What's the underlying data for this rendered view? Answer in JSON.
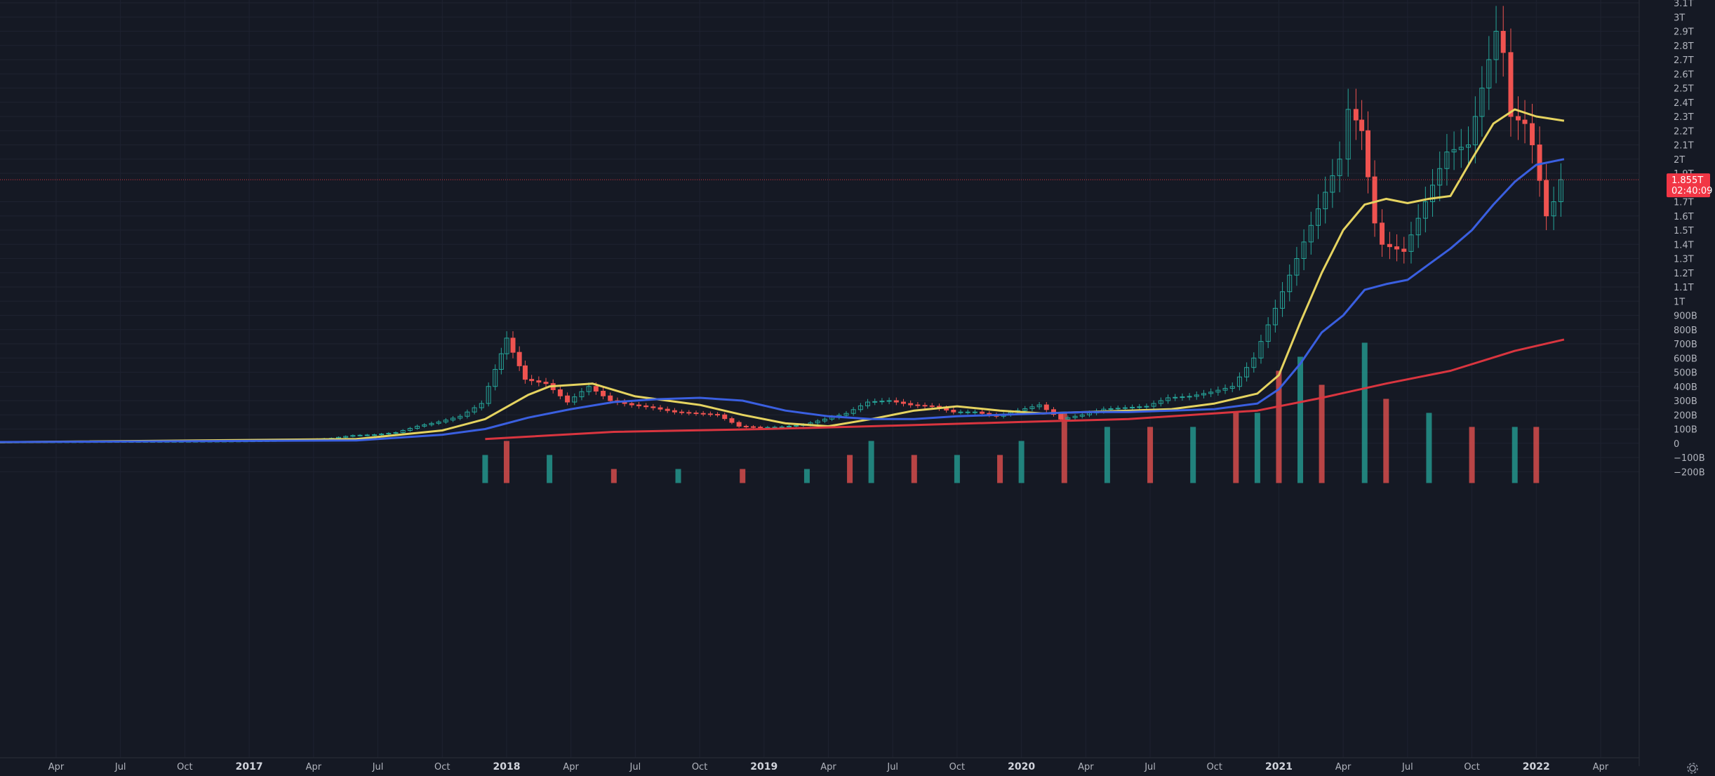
{
  "chart_data": {
    "type": "candlestick",
    "title": "",
    "y_axis": {
      "ticks": [
        "3.1T",
        "3T",
        "2.9T",
        "2.8T",
        "2.7T",
        "2.6T",
        "2.5T",
        "2.4T",
        "2.3T",
        "2.2T",
        "2.1T",
        "2T",
        "1.9T",
        "1.7T",
        "1.6T",
        "1.5T",
        "1.4T",
        "1.3T",
        "1.2T",
        "1.1T",
        "1T",
        "900B",
        "800B",
        "700B",
        "600B",
        "500B",
        "400B",
        "300B",
        "200B",
        "100B",
        "0",
        "−100B",
        "−200B"
      ],
      "tick_values": [
        3.1,
        3.0,
        2.9,
        2.8,
        2.7,
        2.6,
        2.5,
        2.4,
        2.3,
        2.2,
        2.1,
        2.0,
        1.9,
        1.7,
        1.6,
        1.5,
        1.4,
        1.3,
        1.2,
        1.1,
        1.0,
        0.9,
        0.8,
        0.7,
        0.6,
        0.5,
        0.4,
        0.3,
        0.2,
        0.1,
        0,
        -0.1,
        -0.2
      ],
      "unit": "USD",
      "range": [
        -0.28,
        3.1
      ]
    },
    "x_axis": {
      "ticks": [
        "Apr",
        "Jul",
        "Oct",
        "2017",
        "Apr",
        "Jul",
        "Oct",
        "2018",
        "Apr",
        "Jul",
        "Oct",
        "2019",
        "Apr",
        "Jul",
        "Oct",
        "2020",
        "Apr",
        "Jul",
        "Oct",
        "2021",
        "Apr",
        "Jul",
        "Oct",
        "2022",
        "Apr"
      ],
      "tick_dates": [
        "2016-04",
        "2016-07",
        "2016-10",
        "2017-01",
        "2017-04",
        "2017-07",
        "2017-10",
        "2018-01",
        "2018-04",
        "2018-07",
        "2018-10",
        "2019-01",
        "2019-04",
        "2019-07",
        "2019-10",
        "2020-01",
        "2020-04",
        "2020-07",
        "2020-10",
        "2021-01",
        "2021-04",
        "2021-07",
        "2021-10",
        "2022-01",
        "2022-04"
      ],
      "bold_ticks": [
        "2017",
        "2018",
        "2019",
        "2020",
        "2021",
        "2022"
      ],
      "range": [
        "2016-01",
        "2022-06"
      ]
    },
    "current_price": {
      "label": "1.855T",
      "countdown": "02:40:09",
      "value": 1.855
    },
    "price_series": [
      [
        "2016-01",
        0.007
      ],
      [
        "2016-04",
        0.009
      ],
      [
        "2016-07",
        0.011
      ],
      [
        "2016-10",
        0.012
      ],
      [
        "2017-01",
        0.015
      ],
      [
        "2017-03",
        0.019
      ],
      [
        "2017-05",
        0.035
      ],
      [
        "2017-06",
        0.055
      ],
      [
        "2017-07",
        0.06
      ],
      [
        "2017-08",
        0.075
      ],
      [
        "2017-09",
        0.12
      ],
      [
        "2017-10",
        0.15
      ],
      [
        "2017-11",
        0.19
      ],
      [
        "2017-12",
        0.28
      ],
      [
        "2017-12-20",
        0.52
      ],
      [
        "2018-01-05",
        0.74
      ],
      [
        "2018-01-15",
        0.64
      ],
      [
        "2018-02-01",
        0.45
      ],
      [
        "2018-03",
        0.42
      ],
      [
        "2018-04",
        0.29
      ],
      [
        "2018-05",
        0.4
      ],
      [
        "2018-06",
        0.3
      ],
      [
        "2018-07",
        0.27
      ],
      [
        "2018-08",
        0.25
      ],
      [
        "2018-09",
        0.22
      ],
      [
        "2018-10",
        0.21
      ],
      [
        "2018-11",
        0.2
      ],
      [
        "2018-12",
        0.12
      ],
      [
        "2019-01",
        0.11
      ],
      [
        "2019-02",
        0.115
      ],
      [
        "2019-03",
        0.13
      ],
      [
        "2019-04",
        0.17
      ],
      [
        "2019-05",
        0.21
      ],
      [
        "2019-06",
        0.29
      ],
      [
        "2019-07",
        0.3
      ],
      [
        "2019-08",
        0.27
      ],
      [
        "2019-09",
        0.26
      ],
      [
        "2019-10",
        0.22
      ],
      [
        "2019-11",
        0.22
      ],
      [
        "2019-12",
        0.19
      ],
      [
        "2020-01",
        0.23
      ],
      [
        "2020-02",
        0.27
      ],
      [
        "2020-03",
        0.17
      ],
      [
        "2020-04",
        0.2
      ],
      [
        "2020-05",
        0.24
      ],
      [
        "2020-06",
        0.25
      ],
      [
        "2020-07",
        0.26
      ],
      [
        "2020-08",
        0.32
      ],
      [
        "2020-09",
        0.33
      ],
      [
        "2020-10",
        0.36
      ],
      [
        "2020-11",
        0.4
      ],
      [
        "2020-12",
        0.6
      ],
      [
        "2021-01",
        0.95
      ],
      [
        "2021-02",
        1.3
      ],
      [
        "2021-03",
        1.65
      ],
      [
        "2021-04",
        2.0
      ],
      [
        "2021-04-15",
        2.35
      ],
      [
        "2021-05",
        2.2
      ],
      [
        "2021-05-20",
        1.55
      ],
      [
        "2021-06",
        1.4
      ],
      [
        "2021-07",
        1.35
      ],
      [
        "2021-08",
        1.7
      ],
      [
        "2021-09",
        2.05
      ],
      [
        "2021-10",
        2.1
      ],
      [
        "2021-10-20",
        2.5
      ],
      [
        "2021-11-10",
        2.9
      ],
      [
        "2021-11-20",
        2.75
      ],
      [
        "2021-12",
        2.3
      ],
      [
        "2021-12-20",
        2.25
      ],
      [
        "2022-01",
        2.1
      ],
      [
        "2022-01-20",
        1.6
      ],
      [
        "2022-02-01",
        1.7
      ],
      [
        "2022-02-10",
        1.855
      ]
    ],
    "series": [
      {
        "name": "",
        "color": "#e5d360",
        "type": "line",
        "points": [
          [
            "2016-01",
            0.007
          ],
          [
            "2017-06",
            0.03
          ],
          [
            "2017-10",
            0.09
          ],
          [
            "2017-12",
            0.17
          ],
          [
            "2018-02",
            0.34
          ],
          [
            "2018-03",
            0.4
          ],
          [
            "2018-05",
            0.42
          ],
          [
            "2018-07",
            0.33
          ],
          [
            "2018-10",
            0.27
          ],
          [
            "2018-12",
            0.2
          ],
          [
            "2019-02",
            0.14
          ],
          [
            "2019-04",
            0.12
          ],
          [
            "2019-06",
            0.17
          ],
          [
            "2019-08",
            0.23
          ],
          [
            "2019-10",
            0.26
          ],
          [
            "2019-12",
            0.23
          ],
          [
            "2020-02",
            0.21
          ],
          [
            "2020-04",
            0.22
          ],
          [
            "2020-06",
            0.23
          ],
          [
            "2020-08",
            0.24
          ],
          [
            "2020-10",
            0.28
          ],
          [
            "2020-12",
            0.35
          ],
          [
            "2021-01",
            0.48
          ],
          [
            "2021-02",
            0.85
          ],
          [
            "2021-03",
            1.2
          ],
          [
            "2021-04",
            1.5
          ],
          [
            "2021-05",
            1.68
          ],
          [
            "2021-06",
            1.72
          ],
          [
            "2021-07",
            1.69
          ],
          [
            "2021-08",
            1.72
          ],
          [
            "2021-09",
            1.74
          ],
          [
            "2021-10",
            2.0
          ],
          [
            "2021-11",
            2.25
          ],
          [
            "2021-12",
            2.35
          ],
          [
            "2022-01",
            2.3
          ],
          [
            "2022-02-10",
            2.27
          ]
        ]
      },
      {
        "name": "",
        "color": "#3a5fe0",
        "type": "line",
        "points": [
          [
            "2016-01",
            0.008
          ],
          [
            "2017-06",
            0.02
          ],
          [
            "2017-10",
            0.06
          ],
          [
            "2017-12",
            0.1
          ],
          [
            "2018-02",
            0.18
          ],
          [
            "2018-04",
            0.24
          ],
          [
            "2018-06",
            0.29
          ],
          [
            "2018-08",
            0.31
          ],
          [
            "2018-10",
            0.32
          ],
          [
            "2018-12",
            0.3
          ],
          [
            "2019-02",
            0.23
          ],
          [
            "2019-04",
            0.19
          ],
          [
            "2019-06",
            0.17
          ],
          [
            "2019-08",
            0.17
          ],
          [
            "2019-10",
            0.19
          ],
          [
            "2019-12",
            0.2
          ],
          [
            "2020-02",
            0.21
          ],
          [
            "2020-04",
            0.22
          ],
          [
            "2020-06",
            0.22
          ],
          [
            "2020-08",
            0.23
          ],
          [
            "2020-10",
            0.24
          ],
          [
            "2020-12",
            0.28
          ],
          [
            "2021-01",
            0.38
          ],
          [
            "2021-02",
            0.56
          ],
          [
            "2021-03",
            0.78
          ],
          [
            "2021-04",
            0.9
          ],
          [
            "2021-05",
            1.08
          ],
          [
            "2021-06",
            1.12
          ],
          [
            "2021-07",
            1.15
          ],
          [
            "2021-08",
            1.26
          ],
          [
            "2021-09",
            1.37
          ],
          [
            "2021-10",
            1.5
          ],
          [
            "2021-11",
            1.68
          ],
          [
            "2021-12",
            1.84
          ],
          [
            "2022-01",
            1.96
          ],
          [
            "2022-02-10",
            2.0
          ]
        ]
      },
      {
        "name": "",
        "color": "#d9353f",
        "type": "line",
        "points": [
          [
            "2017-12",
            0.03
          ],
          [
            "2018-06",
            0.08
          ],
          [
            "2019-01",
            0.1
          ],
          [
            "2019-06",
            0.12
          ],
          [
            "2020-01",
            0.15
          ],
          [
            "2020-06",
            0.17
          ],
          [
            "2020-12",
            0.23
          ],
          [
            "2021-03",
            0.32
          ],
          [
            "2021-06",
            0.42
          ],
          [
            "2021-09",
            0.51
          ],
          [
            "2021-12",
            0.65
          ],
          [
            "2022-02-10",
            0.73
          ]
        ]
      }
    ],
    "volume": {
      "up_color": "#26a69a",
      "down_color": "#ef5350",
      "bars": [
        [
          "2017-12",
          0.0002
        ],
        [
          "2018-01",
          0.0003
        ],
        [
          "2018-03",
          0.0002
        ],
        [
          "2018-06",
          0.0001
        ],
        [
          "2018-09",
          0.0001
        ],
        [
          "2018-12",
          0.0001
        ],
        [
          "2019-03",
          0.0001
        ],
        [
          "2019-05",
          0.0002
        ],
        [
          "2019-06",
          0.0003
        ],
        [
          "2019-08",
          0.0002
        ],
        [
          "2019-10",
          0.0002
        ],
        [
          "2019-12",
          0.0002
        ],
        [
          "2020-01",
          0.0003
        ],
        [
          "2020-03",
          0.0005
        ],
        [
          "2020-05",
          0.0004
        ],
        [
          "2020-07",
          0.0004
        ],
        [
          "2020-09",
          0.0004
        ],
        [
          "2020-11",
          0.0005
        ],
        [
          "2020-12",
          0.0005
        ],
        [
          "2021-01",
          0.0008
        ],
        [
          "2021-02",
          0.0009
        ],
        [
          "2021-03",
          0.0007
        ],
        [
          "2021-05",
          0.001
        ],
        [
          "2021-06",
          0.0006
        ],
        [
          "2021-08",
          0.0005
        ],
        [
          "2021-10",
          0.0004
        ],
        [
          "2021-12",
          0.0004
        ],
        [
          "2022-01",
          0.0004
        ]
      ]
    }
  }
}
